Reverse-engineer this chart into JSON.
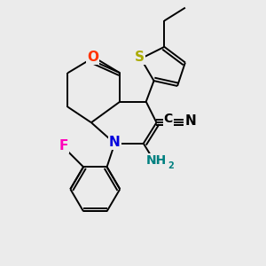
{
  "bg_color": "#ebebeb",
  "bond_color": "#000000",
  "bond_width": 1.4,
  "figsize": [
    3.0,
    3.0
  ],
  "dpi": 100,
  "xlim": [
    0,
    10
  ],
  "ylim": [
    0,
    10
  ],
  "colors": {
    "O": "#ff3300",
    "N_ring": "#0000dd",
    "N_cyan": "#008080",
    "S": "#aaaa00",
    "F": "#ff00bb",
    "C": "#000000"
  }
}
